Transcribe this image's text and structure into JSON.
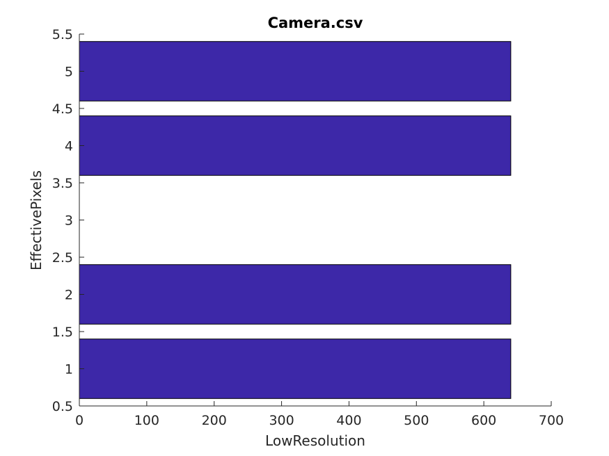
{
  "chart_data": {
    "type": "bar",
    "orientation": "horizontal",
    "title": "Camera.csv",
    "xlabel": "LowResolution",
    "ylabel": "EffectivePixels",
    "categories": [
      1,
      2,
      4,
      5
    ],
    "values": [
      640,
      640,
      640,
      640
    ],
    "xlim": [
      0,
      700
    ],
    "ylim": [
      0.5,
      5.5
    ],
    "xticks": [
      "0",
      "100",
      "200",
      "300",
      "400",
      "500",
      "600",
      "700"
    ],
    "yticks": [
      "0.5",
      "1",
      "1.5",
      "2",
      "2.5",
      "3",
      "3.5",
      "4",
      "4.5",
      "5",
      "5.5"
    ],
    "bar_color": "#3d28a8",
    "grid": false
  }
}
